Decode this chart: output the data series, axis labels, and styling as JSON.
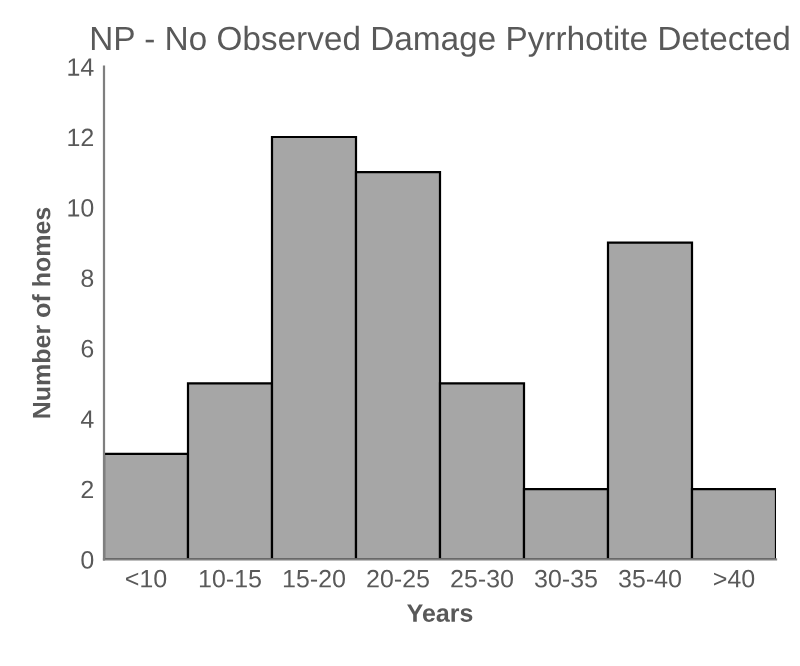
{
  "chart_data": {
    "type": "bar",
    "title": "NP - No Observed Damage Pyrrhotite Detected",
    "xlabel": "Years",
    "ylabel": "Number of homes",
    "categories": [
      "<10",
      "10-15",
      "15-20",
      "20-25",
      "25-30",
      "30-35",
      "35-40",
      ">40"
    ],
    "values": [
      3,
      5,
      12,
      11,
      5,
      2,
      9,
      2
    ],
    "color": "#a6a6a6",
    "ylim": [
      0,
      14
    ],
    "yticks": [
      0,
      2,
      4,
      6,
      8,
      10,
      12,
      14
    ],
    "grid": false,
    "legend": false
  }
}
